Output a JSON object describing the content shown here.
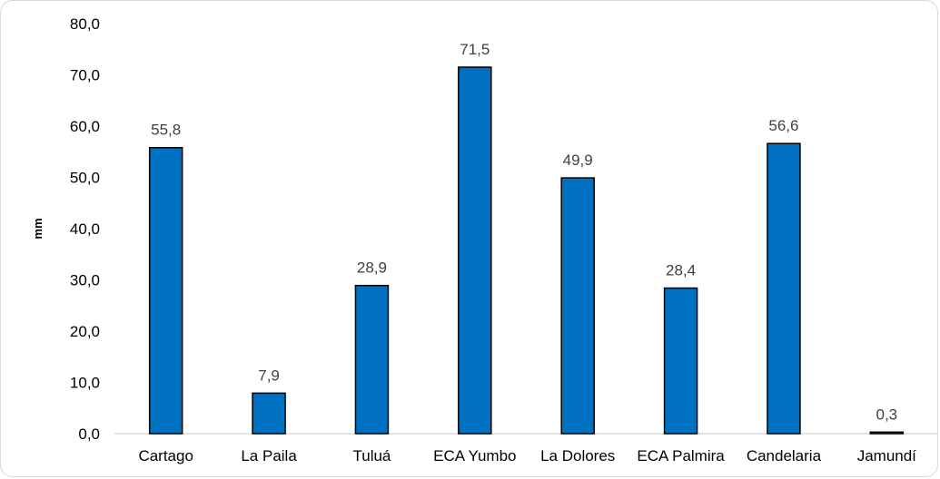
{
  "chart_data": {
    "type": "bar",
    "categories": [
      "Cartago",
      "La Paila",
      "Tuluá",
      "ECA Yumbo",
      "La Dolores",
      "ECA Palmira",
      "Candelaria",
      "Jamundí"
    ],
    "values": [
      55.8,
      7.9,
      28.9,
      71.5,
      49.9,
      28.4,
      56.6,
      0.3
    ],
    "value_labels": [
      "55,8",
      "7,9",
      "28,9",
      "71,5",
      "49,9",
      "28,4",
      "56,6",
      "0,3"
    ],
    "title": "",
    "xlabel": "",
    "ylabel": "mm",
    "ylim": [
      0,
      80
    ],
    "y_ticks": [
      0,
      10,
      20,
      30,
      40,
      50,
      60,
      70,
      80
    ],
    "y_tick_labels": [
      "0,0",
      "10,0",
      "20,0",
      "30,0",
      "40,0",
      "50,0",
      "60,0",
      "70,0",
      "80,0"
    ],
    "grid": false,
    "legend": "none",
    "colors": {
      "bar_fill": "#0070C0",
      "bar_stroke": "#000000",
      "axis": "#d9d9d9",
      "data_label": "#404040",
      "frame_border": "#d9d9d9"
    }
  }
}
